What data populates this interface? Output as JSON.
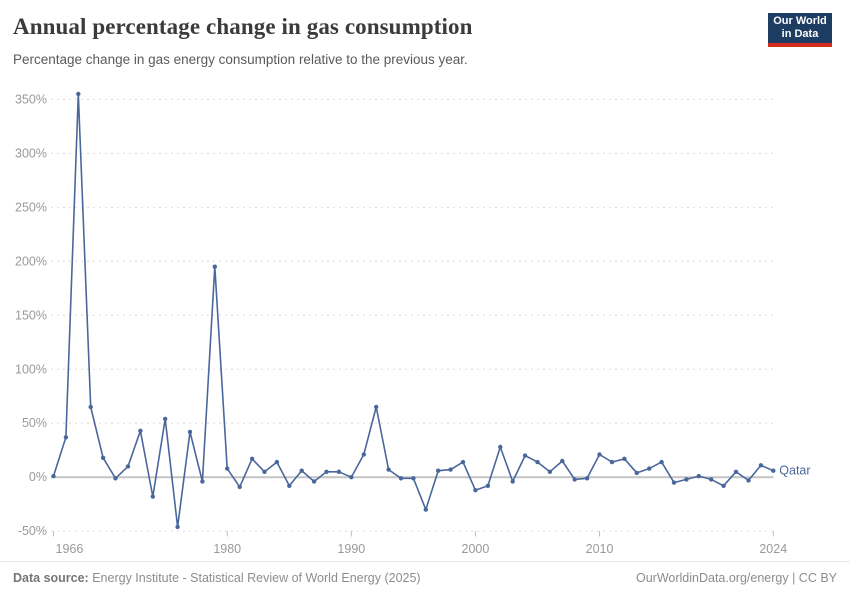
{
  "header": {
    "title": "Annual percentage change in gas consumption",
    "subtitle": "Percentage change in gas energy consumption relative to the previous year.",
    "logo": {
      "line1": "Our World",
      "line2": "in Data",
      "bg_color": "#1d3d63",
      "bar_color": "#d42b21"
    }
  },
  "footer": {
    "source_label": "Data source:",
    "source_text": " Energy Institute - Statistical Review of World Energy (2025)",
    "right_text": "OurWorldinData.org/energy | CC BY"
  },
  "chart_data": {
    "type": "line",
    "title": "Annual percentage change in gas consumption",
    "entity_label": "Qatar",
    "line_color": "#4a679c",
    "grid_color": "#dcdcdc",
    "zero_line_color": "#c4c4c4",
    "axis_text_color": "#9a9a9a",
    "xlabel": "",
    "ylabel": "",
    "ylim": [
      -50,
      350
    ],
    "ytick_step": 50,
    "ytick_suffix": "%",
    "xticks": [
      1966,
      1980,
      1990,
      2000,
      2010,
      2024
    ],
    "legend_position": "end-of-line-label",
    "grid": "horizontal dashed, solid zero line",
    "years": [
      1966,
      1967,
      1968,
      1969,
      1970,
      1971,
      1972,
      1973,
      1974,
      1975,
      1976,
      1977,
      1978,
      1979,
      1980,
      1981,
      1982,
      1983,
      1984,
      1985,
      1986,
      1987,
      1988,
      1989,
      1990,
      1991,
      1992,
      1993,
      1994,
      1995,
      1996,
      1997,
      1998,
      1999,
      2000,
      2001,
      2002,
      2003,
      2004,
      2005,
      2006,
      2007,
      2008,
      2009,
      2010,
      2011,
      2012,
      2013,
      2014,
      2015,
      2016,
      2017,
      2018,
      2019,
      2020,
      2021,
      2022,
      2023,
      2024
    ],
    "values": [
      1,
      37,
      355,
      65,
      18,
      -1,
      10,
      43,
      -18,
      54,
      -46,
      42,
      -4,
      195,
      8,
      -9,
      17,
      5,
      14,
      -8,
      6,
      -4,
      5,
      5,
      0,
      21,
      65,
      7,
      -1,
      -1,
      -30,
      6,
      7,
      14,
      -12,
      -8,
      28,
      -4,
      20,
      14,
      5,
      15,
      -2,
      -1,
      21,
      14,
      17,
      4,
      8,
      14,
      -5,
      -2,
      1,
      -2,
      -8,
      5,
      -3,
      11,
      6
    ]
  }
}
